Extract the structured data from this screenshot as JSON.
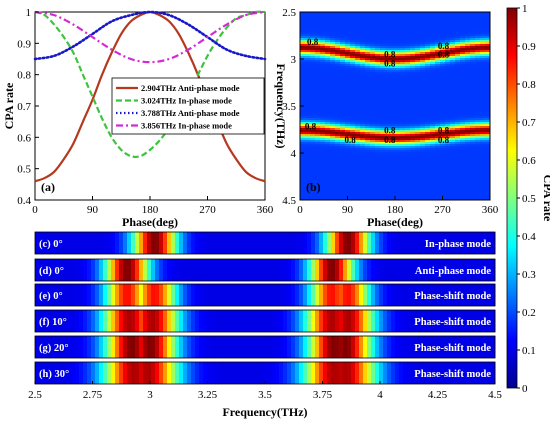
{
  "chart_data": [
    {
      "panel": "(a)",
      "type": "line",
      "xlabel": "Phase(deg)",
      "ylabel": "CPA rate",
      "xlim": [
        0,
        360
      ],
      "ylim": [
        0.4,
        1
      ],
      "xticks": [
        "0",
        "90",
        "180",
        "270",
        "360"
      ],
      "yticks": [
        "0.4",
        "0.5",
        "0.6",
        "0.7",
        "0.8",
        "0.9",
        "1"
      ],
      "legend_position": "center-right",
      "series": [
        {
          "name": "2.904THz Anti-phase mode",
          "color": "#b5391f",
          "style": "solid",
          "x": [
            0,
            15,
            30,
            45,
            60,
            75,
            90,
            105,
            120,
            135,
            150,
            165,
            180,
            195,
            210,
            225,
            240,
            255,
            270,
            285,
            300,
            315,
            330,
            345,
            360
          ],
          "y": [
            0.46,
            0.47,
            0.49,
            0.53,
            0.58,
            0.65,
            0.72,
            0.8,
            0.87,
            0.93,
            0.97,
            0.99,
            1.0,
            0.99,
            0.97,
            0.93,
            0.87,
            0.8,
            0.72,
            0.65,
            0.58,
            0.53,
            0.49,
            0.47,
            0.46
          ]
        },
        {
          "name": "3.024THz In-phase mode",
          "color": "#3cc43c",
          "style": "dashed",
          "x": [
            0,
            15,
            30,
            45,
            60,
            75,
            90,
            105,
            120,
            135,
            150,
            165,
            180,
            195,
            210,
            225,
            240,
            255,
            270,
            285,
            300,
            315,
            330,
            345,
            360
          ],
          "y": [
            1.0,
            0.99,
            0.96,
            0.92,
            0.87,
            0.8,
            0.73,
            0.66,
            0.6,
            0.56,
            0.54,
            0.54,
            0.56,
            0.59,
            0.63,
            0.68,
            0.74,
            0.8,
            0.86,
            0.91,
            0.95,
            0.98,
            0.99,
            1.0,
            1.0
          ]
        },
        {
          "name": "3.788THz Anti-phase mode",
          "color": "#1818c8",
          "style": "dotted",
          "x": [
            0,
            30,
            60,
            90,
            120,
            150,
            180,
            210,
            240,
            270,
            300,
            330,
            360
          ],
          "y": [
            0.85,
            0.86,
            0.89,
            0.93,
            0.97,
            0.99,
            1.0,
            0.99,
            0.96,
            0.92,
            0.88,
            0.86,
            0.85
          ]
        },
        {
          "name": "3.856THz In-phase mode",
          "color": "#d42ad4",
          "style": "dashdot",
          "x": [
            0,
            30,
            60,
            90,
            120,
            150,
            180,
            210,
            240,
            270,
            300,
            330,
            360
          ],
          "y": [
            1.0,
            0.99,
            0.96,
            0.92,
            0.88,
            0.85,
            0.84,
            0.85,
            0.88,
            0.92,
            0.96,
            0.99,
            1.0
          ]
        }
      ],
      "panel_label": "(a)"
    },
    {
      "panel": "(b)",
      "type": "heatmap",
      "xlabel": "Phase(deg)",
      "ylabel": "Frequency(THz)",
      "xlim": [
        0,
        360
      ],
      "ylim": [
        2.5,
        4.5
      ],
      "y_inverted": true,
      "xticks": [
        "0",
        "90",
        "180",
        "270",
        "360"
      ],
      "yticks": [
        "2.5",
        "3",
        "3.5",
        "4",
        "4.5"
      ],
      "bands": [
        {
          "center_deg0": 2.88,
          "center_deg180": 3.0,
          "width": 0.07
        },
        {
          "center_deg0": 3.76,
          "center_deg180": 3.84,
          "width": 0.07
        }
      ],
      "contour_level": "0.8",
      "contour_labels": [
        "0.8",
        "0.8",
        "0.8",
        "0.8",
        "0.8",
        "0.8",
        "0.8",
        "0.8",
        "0.8",
        "0.8",
        "0.8"
      ],
      "panel_label": "(b)"
    },
    {
      "type": "heatmap",
      "xlabel": "Frequency(THz)",
      "xlim": [
        2.5,
        4.5
      ],
      "xticks": [
        "2.5",
        "2.75",
        "3",
        "3.25",
        "3.5",
        "3.75",
        "4",
        "4.25",
        "4.5"
      ],
      "strips": [
        {
          "label": "(c) 0°",
          "mode": "In-phase mode",
          "peaks": [
            {
              "f": 3.02,
              "w": 0.05,
              "a": 1.0
            },
            {
              "f": 3.86,
              "w": 0.05,
              "a": 1.0
            }
          ]
        },
        {
          "label": "(d) 0°",
          "mode": "Anti-phase mode",
          "peaks": [
            {
              "f": 2.9,
              "w": 0.05,
              "a": 1.0
            },
            {
              "f": 3.79,
              "w": 0.05,
              "a": 1.0
            }
          ]
        },
        {
          "label": "(e) 0°",
          "mode": "Phase-shift mode",
          "peaks": [
            {
              "f": 2.9,
              "w": 0.05,
              "a": 0.85
            },
            {
              "f": 3.02,
              "w": 0.05,
              "a": 0.85
            },
            {
              "f": 3.79,
              "w": 0.05,
              "a": 0.85
            },
            {
              "f": 3.86,
              "w": 0.05,
              "a": 0.85
            }
          ]
        },
        {
          "label": "(f) 10°",
          "mode": "Phase-shift mode",
          "peaks": [
            {
              "f": 2.91,
              "w": 0.06,
              "a": 0.95
            },
            {
              "f": 3.01,
              "w": 0.06,
              "a": 0.95
            },
            {
              "f": 3.79,
              "w": 0.06,
              "a": 0.95
            },
            {
              "f": 3.86,
              "w": 0.06,
              "a": 0.95
            }
          ]
        },
        {
          "label": "(g) 20°",
          "mode": "Phase-shift mode",
          "peaks": [
            {
              "f": 2.92,
              "w": 0.06,
              "a": 1.0
            },
            {
              "f": 3.0,
              "w": 0.06,
              "a": 1.0
            },
            {
              "f": 3.8,
              "w": 0.06,
              "a": 1.0
            },
            {
              "f": 3.85,
              "w": 0.06,
              "a": 1.0
            }
          ]
        },
        {
          "label": "(h) 30°",
          "mode": "Phase-shift mode",
          "peaks": [
            {
              "f": 2.93,
              "w": 0.07,
              "a": 0.95
            },
            {
              "f": 2.99,
              "w": 0.07,
              "a": 0.95
            },
            {
              "f": 3.8,
              "w": 0.07,
              "a": 0.95
            },
            {
              "f": 3.85,
              "w": 0.07,
              "a": 0.95
            }
          ]
        }
      ]
    }
  ],
  "colorbar": {
    "label": "CPA rate",
    "range": [
      0,
      1
    ],
    "ticks": [
      "0",
      "0.1",
      "0.2",
      "0.3",
      "0.4",
      "0.5",
      "0.6",
      "0.7",
      "0.8",
      "0.9",
      "1"
    ],
    "colormap": "jet"
  }
}
